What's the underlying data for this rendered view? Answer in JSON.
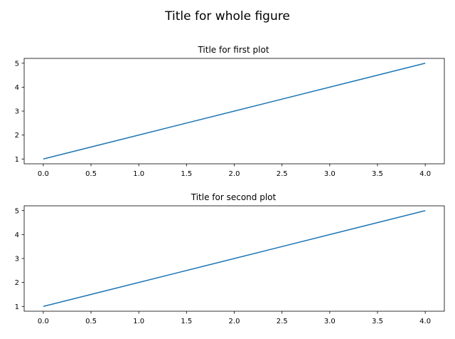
{
  "figure": {
    "title": "Title for whole figure"
  },
  "chart_data": [
    {
      "type": "line",
      "title": "Title for first plot",
      "xlabel": "",
      "ylabel": "",
      "series": [
        {
          "x": [
            0,
            1,
            2,
            3,
            4
          ],
          "values": [
            1,
            2,
            3,
            4,
            5
          ],
          "color": "#1f77b4"
        }
      ],
      "xlim": [
        -0.2,
        4.2
      ],
      "ylim": [
        0.8,
        5.2
      ],
      "xticks": [
        0.0,
        0.5,
        1.0,
        1.5,
        2.0,
        2.5,
        3.0,
        3.5,
        4.0
      ],
      "xtick_labels": [
        "0.0",
        "0.5",
        "1.0",
        "1.5",
        "2.0",
        "2.5",
        "3.0",
        "3.5",
        "4.0"
      ],
      "yticks": [
        1,
        2,
        3,
        4,
        5
      ],
      "ytick_labels": [
        "1",
        "2",
        "3",
        "4",
        "5"
      ],
      "grid": false,
      "legend": false
    },
    {
      "type": "line",
      "title": "Title for second plot",
      "xlabel": "",
      "ylabel": "",
      "series": [
        {
          "x": [
            0,
            1,
            2,
            3,
            4
          ],
          "values": [
            1,
            2,
            3,
            4,
            5
          ],
          "color": "#1f77b4"
        }
      ],
      "xlim": [
        -0.2,
        4.2
      ],
      "ylim": [
        0.8,
        5.2
      ],
      "xticks": [
        0.0,
        0.5,
        1.0,
        1.5,
        2.0,
        2.5,
        3.0,
        3.5,
        4.0
      ],
      "xtick_labels": [
        "0.0",
        "0.5",
        "1.0",
        "1.5",
        "2.0",
        "2.5",
        "3.0",
        "3.5",
        "4.0"
      ],
      "yticks": [
        1,
        2,
        3,
        4,
        5
      ],
      "ytick_labels": [
        "1",
        "2",
        "3",
        "4",
        "5"
      ],
      "grid": false,
      "legend": false
    }
  ]
}
